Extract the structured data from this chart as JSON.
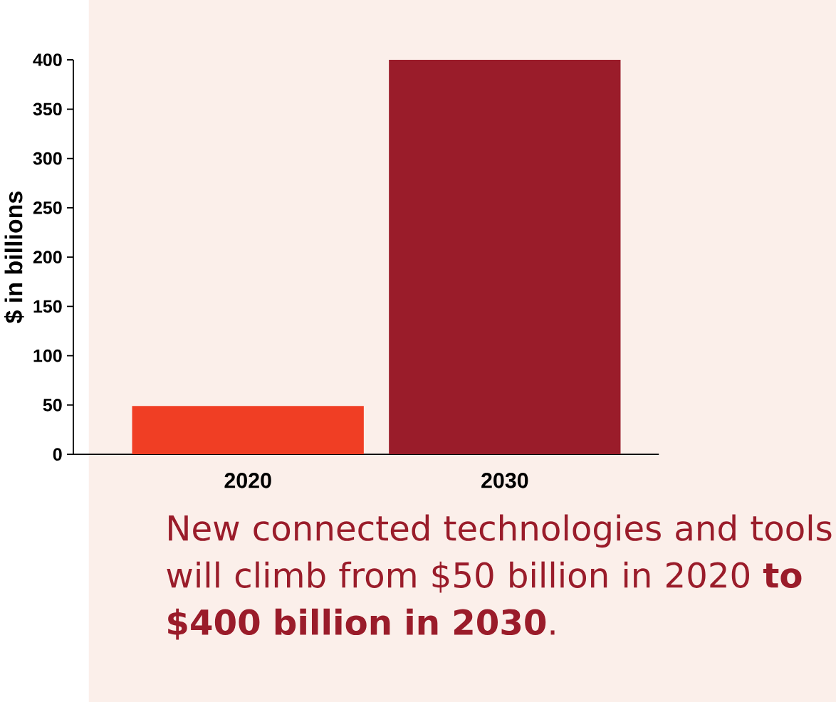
{
  "chart_data": {
    "type": "bar",
    "ylabel": "$ in billions",
    "categories": [
      "2020",
      "2030"
    ],
    "values": [
      49,
      400
    ],
    "colors": [
      "#f03e24",
      "#9a1c2a"
    ],
    "ylim": [
      0,
      400
    ],
    "yticks": [
      0,
      50,
      100,
      150,
      200,
      250,
      300,
      350,
      400
    ],
    "annotations": [
      "New connected technologies and tools will climb from $50 billion in 2020 **to $400 billion in 2030**."
    ]
  }
}
